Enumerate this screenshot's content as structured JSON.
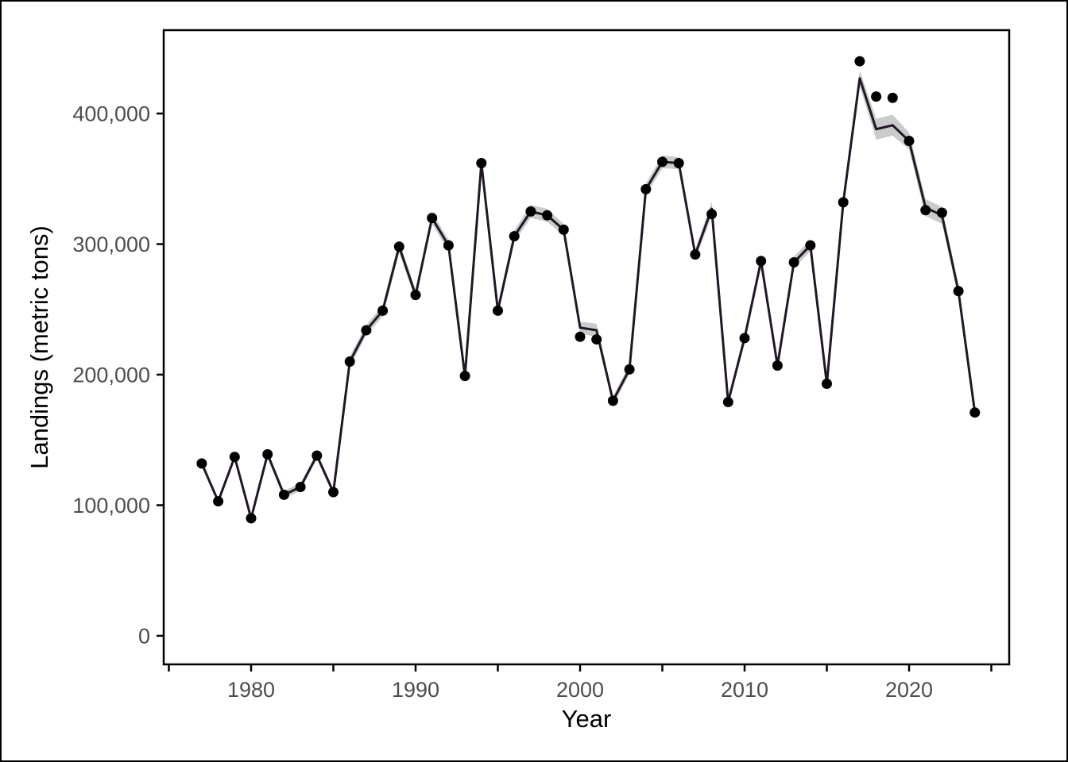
{
  "figure": {
    "x_axis_title": "Year",
    "y_axis_title": "Landings (metric tons)"
  },
  "chart_data": {
    "type": "line",
    "title": "",
    "xlabel": "Year",
    "ylabel": "Landings (metric tons)",
    "grid": false,
    "legend": "none",
    "xlim": [
      1974.5,
      2026.5
    ],
    "ylim": [
      0,
      470000
    ],
    "x": [
      1977,
      1978,
      1979,
      1980,
      1981,
      1982,
      1983,
      1984,
      1985,
      1986,
      1987,
      1988,
      1989,
      1990,
      1991,
      1992,
      1993,
      1994,
      1995,
      1996,
      1997,
      1998,
      1999,
      2000,
      2001,
      2002,
      2003,
      2004,
      2005,
      2006,
      2007,
      2008,
      2009,
      2010,
      2011,
      2012,
      2013,
      2014,
      2015,
      2016,
      2017,
      2018,
      2019,
      2020,
      2021,
      2022,
      2023,
      2024
    ],
    "series": [
      {
        "name": "observed-landings-points",
        "geom": "point",
        "values": [
          132000,
          103000,
          137000,
          90000,
          139000,
          108000,
          114000,
          138000,
          110000,
          210000,
          234000,
          249000,
          298000,
          261000,
          320000,
          299000,
          199000,
          362000,
          249000,
          306000,
          325000,
          322000,
          311000,
          229000,
          227000,
          180000,
          204000,
          342000,
          363000,
          362000,
          292000,
          323000,
          179000,
          228000,
          287000,
          207000,
          286000,
          299000,
          193000,
          332000,
          440000,
          413000,
          412000,
          379000,
          326000,
          324000,
          264000,
          171000
        ]
      },
      {
        "name": "fitted-line",
        "geom": "line",
        "values": [
          132000,
          103000,
          137000,
          90000,
          139000,
          108000,
          114000,
          138000,
          110000,
          210000,
          234000,
          249000,
          298000,
          261000,
          320000,
          299000,
          199000,
          362000,
          249000,
          306000,
          325000,
          322000,
          311000,
          236000,
          234000,
          180000,
          204000,
          342000,
          363000,
          362000,
          292000,
          327000,
          179000,
          228000,
          287000,
          207000,
          286000,
          299000,
          193000,
          332000,
          427000,
          388000,
          391000,
          379000,
          328000,
          322000,
          264000,
          171000
        ]
      },
      {
        "name": "confidence-ribbon-halfwidth",
        "geom": "ribbon",
        "values": [
          2000,
          2500,
          2500,
          2500,
          2500,
          3000,
          3000,
          2500,
          2500,
          4000,
          4000,
          4500,
          4500,
          4000,
          4500,
          4500,
          3500,
          5000,
          4000,
          4500,
          5000,
          5000,
          4500,
          4500,
          5000,
          3500,
          3500,
          4500,
          5000,
          4500,
          4000,
          5500,
          3500,
          4000,
          4500,
          3500,
          4500,
          4500,
          3500,
          4000,
          6000,
          8000,
          8000,
          6500,
          6500,
          6500,
          5000,
          3500
        ]
      }
    ],
    "x_ticks_all": [
      1975,
      1980,
      1985,
      1990,
      1995,
      2000,
      2005,
      2010,
      2015,
      2020,
      2025
    ],
    "x_tick_labels": [
      {
        "year": 1980,
        "label": "1980"
      },
      {
        "year": 1990,
        "label": "1990"
      },
      {
        "year": 2000,
        "label": "2000"
      },
      {
        "year": 2010,
        "label": "2010"
      },
      {
        "year": 2020,
        "label": "2020"
      }
    ],
    "y_tick_labels": [
      {
        "value": 0,
        "label": "0"
      },
      {
        "value": 100000,
        "label": "100,000"
      },
      {
        "value": 200000,
        "label": "200,000"
      },
      {
        "value": 300000,
        "label": "300,000"
      },
      {
        "value": 400000,
        "label": "400,000"
      }
    ],
    "colors": {
      "line": "#221726",
      "point": "#000000",
      "ribbon": "#8c8c8c",
      "ribbon_opacity": 0.45,
      "tick_label": "#4d4d4d",
      "axis_title": "#000000",
      "panel_border": "#000000",
      "background": "#ffffff"
    }
  }
}
